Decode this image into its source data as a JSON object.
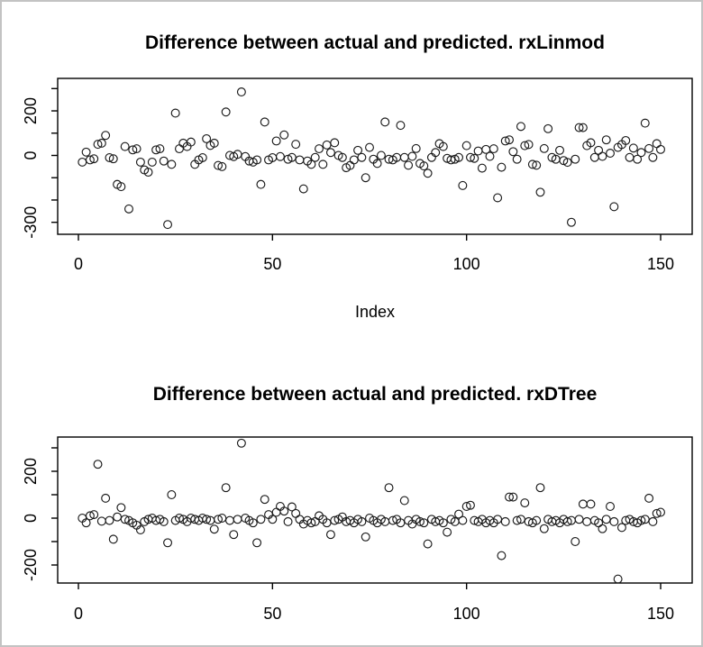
{
  "window": {
    "background": "#ffffff",
    "border_color": "#c3c3c3",
    "point_color": "#1a1a1a",
    "axis_color": "#000000"
  },
  "chart_data": [
    {
      "type": "scatter",
      "title": "Difference between actual and predicted. rxLinmod",
      "xlabel": "Index",
      "ylabel": "",
      "marker": "open-circle",
      "x_ticks": [
        0,
        50,
        100,
        150
      ],
      "y_ticks": [
        300,
        200,
        100,
        0,
        -100,
        -200,
        -300
      ],
      "y_tick_labels_shown": [
        200,
        0,
        -300
      ],
      "xlim": [
        -5,
        156
      ],
      "ylim": [
        -340,
        335
      ],
      "x_is_index_starting_at": 1,
      "values": [
        -30,
        15,
        -20,
        -15,
        50,
        55,
        90,
        -10,
        -15,
        -130,
        -140,
        40,
        -240,
        25,
        30,
        -30,
        -65,
        -75,
        -30,
        25,
        30,
        -25,
        -310,
        -40,
        190,
        30,
        55,
        40,
        60,
        -40,
        -20,
        -10,
        75,
        45,
        55,
        -45,
        -50,
        195,
        0,
        -5,
        5,
        285,
        -5,
        -25,
        -30,
        -20,
        -130,
        150,
        -20,
        -10,
        65,
        -5,
        92,
        -17,
        -9,
        50,
        -20,
        -150,
        -25,
        -40,
        -9,
        30,
        -40,
        47,
        13,
        57,
        0,
        -9,
        -55,
        -45,
        -20,
        23,
        -9,
        -100,
        36,
        -17,
        -36,
        0,
        150,
        -17,
        -20,
        -9,
        135,
        -9,
        -44,
        -4,
        31,
        -36,
        -47,
        -80,
        -9,
        13,
        53,
        40,
        -13,
        -20,
        -17,
        -9,
        -135,
        44,
        -9,
        -13,
        20,
        -57,
        27,
        -4,
        30,
        -190,
        -53,
        65,
        70,
        17,
        -17,
        130,
        44,
        49,
        -40,
        -44,
        -165,
        31,
        120,
        -9,
        -17,
        23,
        -23,
        -31,
        -300,
        -17,
        125,
        125,
        44,
        57,
        -9,
        23,
        -4,
        70,
        10,
        -230,
        36,
        49,
        67,
        -9,
        33,
        -17,
        13,
        145,
        31,
        -9,
        53,
        27
      ]
    },
    {
      "type": "scatter",
      "title": "Difference between actual and predicted. rxDTree",
      "xlabel": "",
      "ylabel": "",
      "marker": "open-circle",
      "x_ticks": [
        0,
        50,
        100,
        150
      ],
      "y_ticks": [
        300,
        200,
        100,
        0,
        -100,
        -200
      ],
      "y_tick_labels_shown": [
        200,
        0,
        -200
      ],
      "xlim": [
        -5,
        156
      ],
      "ylim": [
        -280,
        345
      ],
      "x_is_index_starting_at": 1,
      "values": [
        0,
        -20,
        10,
        15,
        230,
        -13,
        85,
        -10,
        -90,
        5,
        45,
        -5,
        -10,
        -20,
        -30,
        -50,
        -15,
        -5,
        0,
        -10,
        -5,
        -15,
        -105,
        100,
        -10,
        0,
        -5,
        -15,
        0,
        -5,
        -10,
        0,
        -5,
        -10,
        -47,
        -5,
        0,
        130,
        -10,
        -70,
        -5,
        320,
        0,
        -10,
        -20,
        -105,
        -5,
        80,
        15,
        -5,
        25,
        50,
        30,
        -15,
        48,
        20,
        -5,
        -25,
        -10,
        -20,
        -15,
        10,
        -5,
        -20,
        -70,
        -10,
        -5,
        5,
        -15,
        -10,
        -20,
        -5,
        -15,
        -80,
        0,
        -10,
        -20,
        -5,
        -15,
        130,
        -10,
        -5,
        -20,
        75,
        -10,
        -25,
        -5,
        -15,
        -20,
        -110,
        -5,
        -15,
        -10,
        -20,
        -60,
        -5,
        -15,
        17,
        -10,
        50,
        55,
        -10,
        -15,
        -5,
        -20,
        -10,
        -20,
        -5,
        -160,
        -15,
        90,
        90,
        -10,
        -5,
        65,
        -15,
        -20,
        -10,
        130,
        -45,
        -5,
        -15,
        -10,
        -20,
        -5,
        -15,
        -10,
        -100,
        -5,
        60,
        -15,
        60,
        -10,
        -20,
        -45,
        -5,
        50,
        -15,
        -260,
        -40,
        -10,
        -5,
        -15,
        -20,
        -10,
        -5,
        85,
        -15,
        20,
        25
      ]
    }
  ]
}
